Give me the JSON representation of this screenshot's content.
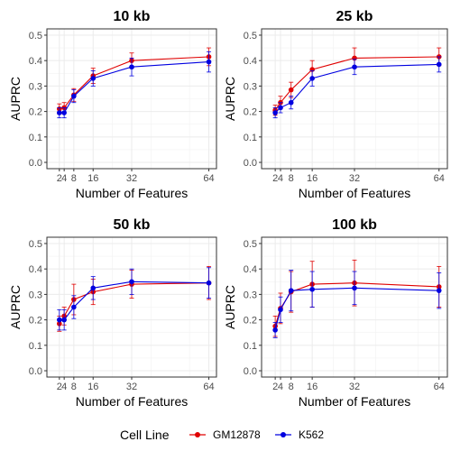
{
  "legend": {
    "title": "Cell Line",
    "items": [
      {
        "name": "GM12878",
        "color": "#e00000"
      },
      {
        "name": "K562",
        "color": "#0000e0"
      }
    ]
  },
  "chart_data": [
    {
      "type": "line",
      "title": "10 kb",
      "xlabel": "Number of Features",
      "ylabel": "AUPRC",
      "x": [
        2,
        4,
        8,
        16,
        32,
        64
      ],
      "xticks": [
        2,
        4,
        8,
        16,
        32,
        64
      ],
      "xticklabels": [
        "2",
        "4",
        "8",
        "16",
        "32",
        "64"
      ],
      "ylim": [
        0,
        0.5
      ],
      "yticks": [
        "0.0",
        "0.1",
        "0.2",
        "0.3",
        "0.4",
        "0.5"
      ],
      "grid": true,
      "series": [
        {
          "name": "GM12878",
          "values": [
            0.21,
            0.215,
            0.265,
            0.34,
            0.4,
            0.415
          ],
          "err": [
            0.02,
            0.02,
            0.025,
            0.03,
            0.03,
            0.035
          ]
        },
        {
          "name": "K562",
          "values": [
            0.195,
            0.195,
            0.26,
            0.33,
            0.375,
            0.395
          ],
          "err": [
            0.02,
            0.02,
            0.025,
            0.03,
            0.035,
            0.04
          ]
        }
      ]
    },
    {
      "type": "line",
      "title": "25 kb",
      "xlabel": "Number of Features",
      "ylabel": "AUPRC",
      "x": [
        2,
        4,
        8,
        16,
        32,
        64
      ],
      "xticks": [
        2,
        4,
        8,
        16,
        32,
        64
      ],
      "xticklabels": [
        "2",
        "4",
        "8",
        "16",
        "32",
        "64"
      ],
      "ylim": [
        0,
        0.5
      ],
      "yticks": [
        "0.0",
        "0.1",
        "0.2",
        "0.3",
        "0.4",
        "0.5"
      ],
      "grid": true,
      "series": [
        {
          "name": "GM12878",
          "values": [
            0.205,
            0.235,
            0.285,
            0.365,
            0.41,
            0.415
          ],
          "err": [
            0.02,
            0.025,
            0.03,
            0.035,
            0.04,
            0.035
          ]
        },
        {
          "name": "K562",
          "values": [
            0.195,
            0.215,
            0.235,
            0.33,
            0.375,
            0.385
          ],
          "err": [
            0.02,
            0.02,
            0.025,
            0.03,
            0.03,
            0.03
          ]
        }
      ]
    },
    {
      "type": "line",
      "title": "50 kb",
      "xlabel": "Number of Features",
      "ylabel": "AUPRC",
      "x": [
        2,
        4,
        8,
        16,
        32,
        64
      ],
      "xticks": [
        2,
        4,
        8,
        16,
        32,
        64
      ],
      "xticklabels": [
        "2",
        "4",
        "8",
        "16",
        "32",
        "64"
      ],
      "ylim": [
        0,
        0.5
      ],
      "yticks": [
        "0.0",
        "0.1",
        "0.2",
        "0.3",
        "0.4",
        "0.5"
      ],
      "grid": true,
      "series": [
        {
          "name": "GM12878",
          "values": [
            0.185,
            0.215,
            0.28,
            0.31,
            0.34,
            0.345
          ],
          "err": [
            0.03,
            0.035,
            0.06,
            0.05,
            0.055,
            0.065
          ]
        },
        {
          "name": "K562",
          "values": [
            0.2,
            0.2,
            0.25,
            0.325,
            0.35,
            0.345
          ],
          "err": [
            0.04,
            0.04,
            0.045,
            0.045,
            0.05,
            0.06
          ]
        }
      ]
    },
    {
      "type": "line",
      "title": "100 kb",
      "xlabel": "Number of Features",
      "ylabel": "AUPRC",
      "x": [
        2,
        4,
        8,
        16,
        32,
        64
      ],
      "xticks": [
        2,
        4,
        8,
        16,
        32,
        64
      ],
      "xticklabels": [
        "2",
        "4",
        "8",
        "16",
        "32",
        "64"
      ],
      "ylim": [
        0,
        0.5
      ],
      "yticks": [
        "0.0",
        "0.1",
        "0.2",
        "0.3",
        "0.4",
        "0.5"
      ],
      "grid": true,
      "series": [
        {
          "name": "GM12878",
          "values": [
            0.175,
            0.245,
            0.31,
            0.34,
            0.345,
            0.33
          ],
          "err": [
            0.04,
            0.06,
            0.08,
            0.09,
            0.09,
            0.08
          ]
        },
        {
          "name": "K562",
          "values": [
            0.16,
            0.24,
            0.315,
            0.32,
            0.325,
            0.315
          ],
          "err": [
            0.03,
            0.05,
            0.08,
            0.07,
            0.065,
            0.07
          ]
        }
      ]
    }
  ]
}
